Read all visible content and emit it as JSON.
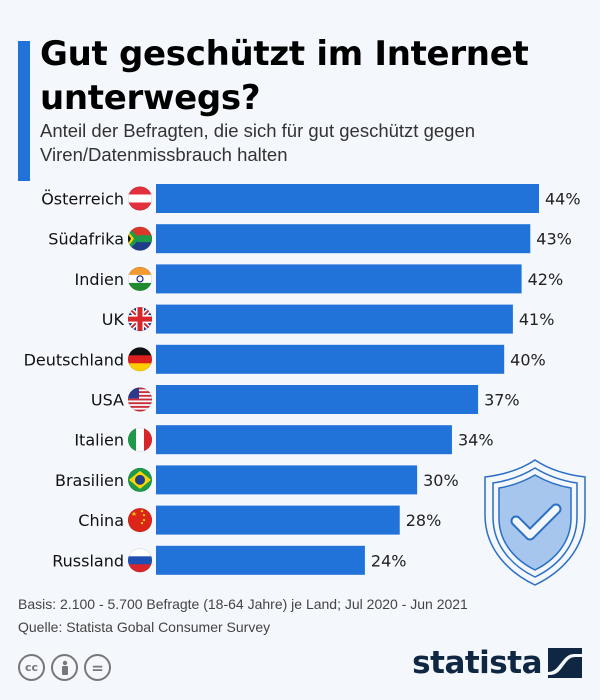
{
  "header": {
    "title": "Gut geschützt im Internet unterwegs?",
    "subtitle": "Anteil der Befragten, die sich für gut geschützt gegen Viren/Datenmissbrauch halten"
  },
  "colors": {
    "accent": "#2172d9",
    "bar": "#2172d9",
    "background": "#f4f7fb",
    "logo": "#0f2742",
    "shield_fill": "#a7c6ee",
    "shield_stroke": "#2b6fc4"
  },
  "chart_data": {
    "type": "bar",
    "orientation": "horizontal",
    "title": "Gut geschützt im Internet unterwegs?",
    "subtitle": "Anteil der Befragten, die sich für gut geschützt gegen Viren/Datenmissbrauch halten",
    "xlabel": "",
    "ylabel": "",
    "unit": "%",
    "xlim": [
      0,
      44
    ],
    "grid": false,
    "categories": [
      "Österreich",
      "Südafrika",
      "Indien",
      "UK",
      "Deutschland",
      "USA",
      "Italien",
      "Brasilien",
      "China",
      "Russland"
    ],
    "flags": [
      "austria-flag-icon",
      "south-africa-flag-icon",
      "india-flag-icon",
      "uk-flag-icon",
      "germany-flag-icon",
      "usa-flag-icon",
      "italy-flag-icon",
      "brazil-flag-icon",
      "china-flag-icon",
      "russia-flag-icon"
    ],
    "values": [
      44,
      43,
      42,
      41,
      40,
      37,
      34,
      30,
      28,
      24
    ],
    "value_labels": [
      "44%",
      "43%",
      "42%",
      "41%",
      "40%",
      "37%",
      "34%",
      "30%",
      "28%",
      "24%"
    ]
  },
  "decoration": {
    "icon": "shield-check-icon"
  },
  "footer": {
    "basis": "Basis: 2.100 - 5.700 Befragte (18-64 Jahre) je Land; Jul 2020 - Jun 2021",
    "source": "Quelle: Statista Gobal Consumer Survey",
    "license_icons": [
      "cc-icon",
      "attribution-icon",
      "no-derivatives-icon"
    ],
    "cc_label": "cc",
    "nd_label": "=",
    "logo_text": "statista"
  }
}
